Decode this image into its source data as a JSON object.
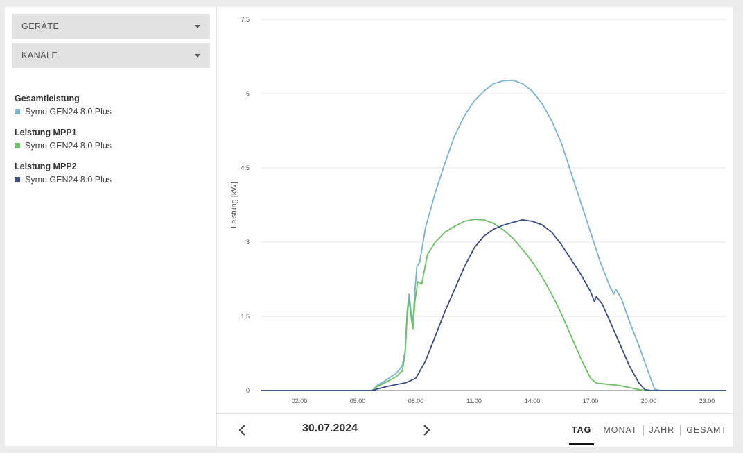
{
  "filters": {
    "devices_label": "GERÄTE",
    "channels_label": "KANÄLE"
  },
  "legend": [
    {
      "title": "Gesamtleistung",
      "device": "Symo GEN24 8.0 Plus",
      "color": "#7ab3cc"
    },
    {
      "title": "Leistung MPP1",
      "device": "Symo GEN24 8.0 Plus",
      "color": "#6cbf63"
    },
    {
      "title": "Leistung MPP2",
      "device": "Symo GEN24 8.0 Plus",
      "color": "#394a86"
    }
  ],
  "chart_data": {
    "type": "line",
    "xlabel": "",
    "ylabel": "Leistung [kW]",
    "ylim": [
      0,
      7.5
    ],
    "yticks": [
      "0",
      "1,5",
      "3",
      "4,5",
      "6",
      "7,5"
    ],
    "xticks": [
      "02:00",
      "05:00",
      "08:00",
      "11:00",
      "14:00",
      "17:00",
      "20:00",
      "23:00"
    ],
    "xlim_hours": [
      0,
      24
    ],
    "grid": true,
    "series": [
      {
        "name": "Gesamtleistung",
        "color": "#7ab3cc",
        "points": [
          [
            0,
            0
          ],
          [
            5.75,
            0
          ],
          [
            6,
            0.1
          ],
          [
            6.5,
            0.22
          ],
          [
            7,
            0.35
          ],
          [
            7.3,
            0.5
          ],
          [
            7.45,
            0.8
          ],
          [
            7.55,
            1.6
          ],
          [
            7.65,
            1.95
          ],
          [
            7.75,
            1.6
          ],
          [
            7.85,
            1.4
          ],
          [
            7.95,
            2.0
          ],
          [
            8.05,
            2.5
          ],
          [
            8.2,
            2.6
          ],
          [
            8.5,
            3.3
          ],
          [
            9,
            4.0
          ],
          [
            9.5,
            4.6
          ],
          [
            10,
            5.15
          ],
          [
            10.5,
            5.55
          ],
          [
            11,
            5.85
          ],
          [
            11.5,
            6.05
          ],
          [
            12,
            6.2
          ],
          [
            12.5,
            6.26
          ],
          [
            13,
            6.27
          ],
          [
            13.5,
            6.2
          ],
          [
            14,
            6.05
          ],
          [
            14.5,
            5.8
          ],
          [
            15,
            5.45
          ],
          [
            15.5,
            5.0
          ],
          [
            16,
            4.4
          ],
          [
            16.5,
            3.8
          ],
          [
            17,
            3.2
          ],
          [
            17.5,
            2.6
          ],
          [
            18,
            2.1
          ],
          [
            18.2,
            1.95
          ],
          [
            18.3,
            2.05
          ],
          [
            18.6,
            1.85
          ],
          [
            19,
            1.4
          ],
          [
            19.5,
            0.9
          ],
          [
            20,
            0.35
          ],
          [
            20.3,
            0.03
          ],
          [
            20.6,
            0
          ],
          [
            24,
            0
          ]
        ]
      },
      {
        "name": "Leistung MPP1",
        "color": "#6cbf63",
        "points": [
          [
            0,
            0
          ],
          [
            5.75,
            0
          ],
          [
            6,
            0.08
          ],
          [
            6.5,
            0.18
          ],
          [
            7,
            0.28
          ],
          [
            7.3,
            0.4
          ],
          [
            7.45,
            0.75
          ],
          [
            7.55,
            1.5
          ],
          [
            7.65,
            1.85
          ],
          [
            7.75,
            1.5
          ],
          [
            7.85,
            1.25
          ],
          [
            7.95,
            1.8
          ],
          [
            8.1,
            2.2
          ],
          [
            8.3,
            2.15
          ],
          [
            8.6,
            2.75
          ],
          [
            9,
            3.0
          ],
          [
            9.5,
            3.2
          ],
          [
            10,
            3.32
          ],
          [
            10.5,
            3.42
          ],
          [
            11,
            3.46
          ],
          [
            11.5,
            3.45
          ],
          [
            12,
            3.38
          ],
          [
            12.5,
            3.25
          ],
          [
            13,
            3.08
          ],
          [
            13.5,
            2.85
          ],
          [
            14,
            2.6
          ],
          [
            14.5,
            2.3
          ],
          [
            15,
            1.95
          ],
          [
            15.5,
            1.55
          ],
          [
            16,
            1.1
          ],
          [
            16.5,
            0.65
          ],
          [
            17,
            0.25
          ],
          [
            17.3,
            0.15
          ],
          [
            17.8,
            0.13
          ],
          [
            18.5,
            0.1
          ],
          [
            19,
            0.06
          ],
          [
            19.5,
            0.02
          ],
          [
            19.8,
            0
          ],
          [
            24,
            0
          ]
        ]
      },
      {
        "name": "Leistung MPP2",
        "color": "#394a86",
        "points": [
          [
            0,
            0
          ],
          [
            5.75,
            0
          ],
          [
            6,
            0.03
          ],
          [
            6.5,
            0.08
          ],
          [
            7,
            0.12
          ],
          [
            7.5,
            0.16
          ],
          [
            8,
            0.25
          ],
          [
            8.5,
            0.6
          ],
          [
            9,
            1.1
          ],
          [
            9.5,
            1.6
          ],
          [
            10,
            2.05
          ],
          [
            10.5,
            2.5
          ],
          [
            11,
            2.88
          ],
          [
            11.5,
            3.12
          ],
          [
            12,
            3.26
          ],
          [
            12.5,
            3.34
          ],
          [
            13,
            3.4
          ],
          [
            13.5,
            3.45
          ],
          [
            14,
            3.42
          ],
          [
            14.5,
            3.35
          ],
          [
            15,
            3.2
          ],
          [
            15.5,
            2.95
          ],
          [
            16,
            2.65
          ],
          [
            16.5,
            2.35
          ],
          [
            17,
            2.0
          ],
          [
            17.2,
            1.8
          ],
          [
            17.3,
            1.9
          ],
          [
            17.6,
            1.75
          ],
          [
            18,
            1.4
          ],
          [
            18.5,
            0.95
          ],
          [
            19,
            0.5
          ],
          [
            19.5,
            0.15
          ],
          [
            19.8,
            0.02
          ],
          [
            20.1,
            0
          ],
          [
            24,
            0
          ]
        ]
      }
    ]
  },
  "footer": {
    "date": "30.07.2024",
    "prev_icon": "chevron-left-icon",
    "next_icon": "chevron-right-icon",
    "tabs": [
      "TAG",
      "MONAT",
      "JAHR",
      "GESAMT"
    ],
    "active_tab": "TAG"
  }
}
